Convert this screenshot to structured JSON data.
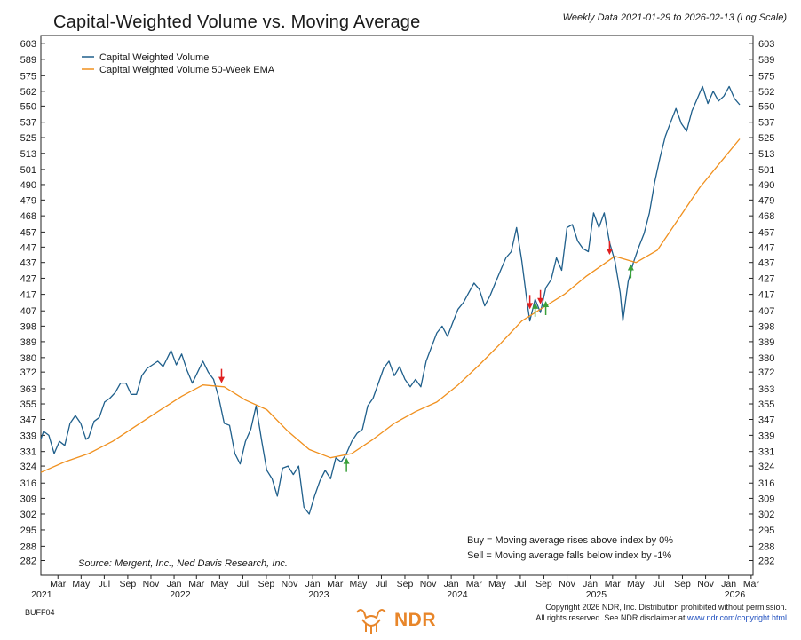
{
  "header": {
    "title": "Capital-Weighted Volume vs. Moving Average",
    "subtitle": "Weekly Data 2021-01-29 to 2026-02-13 (Log Scale)"
  },
  "footer": {
    "code": "BUFF04",
    "logo_text": "NDR",
    "copyright_line1": "Copyright 2026 NDR, Inc. Distribution prohibited without permission.",
    "copyright_line2_prefix": "All rights reserved. See NDR disclaimer at ",
    "copyright_link": "www.ndr.com/copyright.html"
  },
  "colors": {
    "series_volume": "#1f5f8b",
    "series_ema": "#f0901e",
    "buy_arrow": "#3aa03a",
    "sell_arrow": "#e02020",
    "logo": "#e8862a"
  },
  "chart_data": {
    "type": "line",
    "scale": "log",
    "ylim": [
      276,
      610
    ],
    "yticks": [
      603,
      589,
      575,
      562,
      550,
      537,
      525,
      513,
      501,
      490,
      479,
      468,
      457,
      447,
      437,
      427,
      417,
      407,
      398,
      389,
      380,
      372,
      363,
      355,
      347,
      339,
      331,
      324,
      316,
      309,
      302,
      295,
      288,
      282
    ],
    "xlim": [
      "2021-01-29",
      "2026-03-20"
    ],
    "grid": false,
    "legend_position": "top-left",
    "month_ticks": [
      {
        "label": "Mar",
        "date": "2021-03-15"
      },
      {
        "label": "May",
        "date": "2021-05-15"
      },
      {
        "label": "Jul",
        "date": "2021-07-15"
      },
      {
        "label": "Sep",
        "date": "2021-09-15"
      },
      {
        "label": "Nov",
        "date": "2021-11-15"
      },
      {
        "label": "Jan",
        "date": "2022-01-15"
      },
      {
        "label": "Mar",
        "date": "2022-03-15"
      },
      {
        "label": "May",
        "date": "2022-05-15"
      },
      {
        "label": "Jul",
        "date": "2022-07-15"
      },
      {
        "label": "Sep",
        "date": "2022-09-15"
      },
      {
        "label": "Nov",
        "date": "2022-11-15"
      },
      {
        "label": "Jan",
        "date": "2023-01-15"
      },
      {
        "label": "Mar",
        "date": "2023-03-15"
      },
      {
        "label": "May",
        "date": "2023-05-15"
      },
      {
        "label": "Jul",
        "date": "2023-07-15"
      },
      {
        "label": "Sep",
        "date": "2023-09-15"
      },
      {
        "label": "Nov",
        "date": "2023-11-15"
      },
      {
        "label": "Jan",
        "date": "2024-01-15"
      },
      {
        "label": "Mar",
        "date": "2024-03-15"
      },
      {
        "label": "May",
        "date": "2024-05-15"
      },
      {
        "label": "Jul",
        "date": "2024-07-15"
      },
      {
        "label": "Sep",
        "date": "2024-09-15"
      },
      {
        "label": "Nov",
        "date": "2024-11-15"
      },
      {
        "label": "Jan",
        "date": "2025-01-15"
      },
      {
        "label": "Mar",
        "date": "2025-03-15"
      },
      {
        "label": "May",
        "date": "2025-05-15"
      },
      {
        "label": "Jul",
        "date": "2025-07-15"
      },
      {
        "label": "Sep",
        "date": "2025-09-15"
      },
      {
        "label": "Nov",
        "date": "2025-11-15"
      },
      {
        "label": "Jan",
        "date": "2026-01-15"
      },
      {
        "label": "Mar",
        "date": "2026-03-15"
      }
    ],
    "year_labels": [
      {
        "label": "2021",
        "date": "2021-01-31"
      },
      {
        "label": "2022",
        "date": "2022-01-31"
      },
      {
        "label": "2023",
        "date": "2023-01-31"
      },
      {
        "label": "2024",
        "date": "2024-01-31"
      },
      {
        "label": "2025",
        "date": "2025-01-31"
      },
      {
        "label": "2026",
        "date": "2026-01-31"
      }
    ],
    "series": [
      {
        "name": "Capital Weighted Volume",
        "points": [
          [
            "2021-01-29",
            337
          ],
          [
            "2021-02-05",
            341
          ],
          [
            "2021-02-19",
            339
          ],
          [
            "2021-03-05",
            330
          ],
          [
            "2021-03-19",
            336
          ],
          [
            "2021-04-02",
            334
          ],
          [
            "2021-04-16",
            345
          ],
          [
            "2021-04-30",
            349
          ],
          [
            "2021-05-14",
            345
          ],
          [
            "2021-05-28",
            337
          ],
          [
            "2021-06-04",
            338
          ],
          [
            "2021-06-18",
            346
          ],
          [
            "2021-07-02",
            348
          ],
          [
            "2021-07-16",
            356
          ],
          [
            "2021-07-30",
            358
          ],
          [
            "2021-08-13",
            361
          ],
          [
            "2021-08-27",
            366
          ],
          [
            "2021-09-10",
            366
          ],
          [
            "2021-09-24",
            360
          ],
          [
            "2021-10-08",
            360
          ],
          [
            "2021-10-22",
            370
          ],
          [
            "2021-11-05",
            374
          ],
          [
            "2021-11-19",
            376
          ],
          [
            "2021-12-03",
            378
          ],
          [
            "2021-12-17",
            375
          ],
          [
            "2022-01-07",
            384
          ],
          [
            "2022-01-21",
            376
          ],
          [
            "2022-02-04",
            382
          ],
          [
            "2022-02-18",
            373
          ],
          [
            "2022-03-04",
            366
          ],
          [
            "2022-03-18",
            372
          ],
          [
            "2022-04-01",
            378
          ],
          [
            "2022-04-15",
            372
          ],
          [
            "2022-04-29",
            368
          ],
          [
            "2022-05-13",
            358
          ],
          [
            "2022-05-27",
            345
          ],
          [
            "2022-06-10",
            344
          ],
          [
            "2022-06-24",
            330
          ],
          [
            "2022-07-08",
            325
          ],
          [
            "2022-07-22",
            336
          ],
          [
            "2022-08-05",
            342
          ],
          [
            "2022-08-19",
            354
          ],
          [
            "2022-09-02",
            337
          ],
          [
            "2022-09-16",
            322
          ],
          [
            "2022-09-30",
            318
          ],
          [
            "2022-10-14",
            310
          ],
          [
            "2022-10-28",
            323
          ],
          [
            "2022-11-11",
            324
          ],
          [
            "2022-11-25",
            320
          ],
          [
            "2022-12-09",
            324
          ],
          [
            "2022-12-23",
            305
          ],
          [
            "2023-01-06",
            302
          ],
          [
            "2023-01-20",
            310
          ],
          [
            "2023-02-03",
            317
          ],
          [
            "2023-02-17",
            322
          ],
          [
            "2023-03-03",
            318
          ],
          [
            "2023-03-17",
            328
          ],
          [
            "2023-03-31",
            326
          ],
          [
            "2023-04-14",
            330
          ],
          [
            "2023-04-28",
            336
          ],
          [
            "2023-05-12",
            340
          ],
          [
            "2023-05-26",
            342
          ],
          [
            "2023-06-09",
            354
          ],
          [
            "2023-06-23",
            358
          ],
          [
            "2023-07-07",
            366
          ],
          [
            "2023-07-21",
            374
          ],
          [
            "2023-08-04",
            378
          ],
          [
            "2023-08-18",
            370
          ],
          [
            "2023-09-01",
            375
          ],
          [
            "2023-09-15",
            368
          ],
          [
            "2023-09-29",
            364
          ],
          [
            "2023-10-13",
            368
          ],
          [
            "2023-10-27",
            364
          ],
          [
            "2023-11-10",
            378
          ],
          [
            "2023-11-24",
            386
          ],
          [
            "2023-12-08",
            394
          ],
          [
            "2023-12-22",
            398
          ],
          [
            "2024-01-05",
            392
          ],
          [
            "2024-01-19",
            400
          ],
          [
            "2024-02-02",
            408
          ],
          [
            "2024-02-16",
            412
          ],
          [
            "2024-03-01",
            418
          ],
          [
            "2024-03-15",
            424
          ],
          [
            "2024-03-29",
            420
          ],
          [
            "2024-04-12",
            410
          ],
          [
            "2024-04-26",
            416
          ],
          [
            "2024-05-10",
            424
          ],
          [
            "2024-05-24",
            432
          ],
          [
            "2024-06-07",
            440
          ],
          [
            "2024-06-21",
            444
          ],
          [
            "2024-07-05",
            460
          ],
          [
            "2024-07-19",
            438
          ],
          [
            "2024-08-02",
            412
          ],
          [
            "2024-08-09",
            401
          ],
          [
            "2024-08-23",
            414
          ],
          [
            "2024-09-06",
            406
          ],
          [
            "2024-09-20",
            421
          ],
          [
            "2024-10-04",
            426
          ],
          [
            "2024-10-18",
            440
          ],
          [
            "2024-11-01",
            432
          ],
          [
            "2024-11-15",
            460
          ],
          [
            "2024-11-29",
            462
          ],
          [
            "2024-12-13",
            451
          ],
          [
            "2024-12-27",
            446
          ],
          [
            "2025-01-10",
            444
          ],
          [
            "2025-01-24",
            470
          ],
          [
            "2025-02-07",
            460
          ],
          [
            "2025-02-21",
            470
          ],
          [
            "2025-03-07",
            450
          ],
          [
            "2025-03-21",
            438
          ],
          [
            "2025-04-04",
            418
          ],
          [
            "2025-04-11",
            401
          ],
          [
            "2025-04-25",
            425
          ],
          [
            "2025-05-09",
            437
          ],
          [
            "2025-05-23",
            447
          ],
          [
            "2025-06-06",
            456
          ],
          [
            "2025-06-20",
            470
          ],
          [
            "2025-07-04",
            492
          ],
          [
            "2025-07-18",
            510
          ],
          [
            "2025-08-01",
            526
          ],
          [
            "2025-08-15",
            537
          ],
          [
            "2025-08-29",
            548
          ],
          [
            "2025-09-12",
            536
          ],
          [
            "2025-09-26",
            530
          ],
          [
            "2025-10-10",
            546
          ],
          [
            "2025-10-24",
            556
          ],
          [
            "2025-11-07",
            566
          ],
          [
            "2025-11-21",
            552
          ],
          [
            "2025-12-05",
            562
          ],
          [
            "2025-12-19",
            554
          ],
          [
            "2026-01-02",
            558
          ],
          [
            "2026-01-16",
            566
          ],
          [
            "2026-01-30",
            556
          ],
          [
            "2026-02-13",
            551
          ]
        ]
      },
      {
        "name": "Capital Weighted Volume 50-Week EMA",
        "points": [
          [
            "2021-01-29",
            321
          ],
          [
            "2021-04-02",
            326
          ],
          [
            "2021-06-04",
            330
          ],
          [
            "2021-08-06",
            336
          ],
          [
            "2021-10-01",
            343
          ],
          [
            "2021-12-03",
            351
          ],
          [
            "2022-02-04",
            359
          ],
          [
            "2022-04-01",
            365
          ],
          [
            "2022-05-27",
            364
          ],
          [
            "2022-07-22",
            357
          ],
          [
            "2022-09-16",
            352
          ],
          [
            "2022-11-11",
            341
          ],
          [
            "2023-01-06",
            332
          ],
          [
            "2023-03-03",
            328
          ],
          [
            "2023-04-28",
            330
          ],
          [
            "2023-06-23",
            337
          ],
          [
            "2023-08-18",
            345
          ],
          [
            "2023-10-13",
            351
          ],
          [
            "2023-12-08",
            356
          ],
          [
            "2024-02-02",
            365
          ],
          [
            "2024-03-29",
            376
          ],
          [
            "2024-05-24",
            388
          ],
          [
            "2024-07-19",
            401
          ],
          [
            "2024-09-13",
            409
          ],
          [
            "2024-11-08",
            417
          ],
          [
            "2025-01-03",
            428
          ],
          [
            "2025-03-21",
            441
          ],
          [
            "2025-05-16",
            437
          ],
          [
            "2025-07-11",
            445
          ],
          [
            "2025-09-05",
            466
          ],
          [
            "2025-10-31",
            488
          ],
          [
            "2025-12-26",
            507
          ],
          [
            "2026-02-13",
            524
          ]
        ]
      }
    ],
    "signals": [
      {
        "type": "sell",
        "date": "2022-05-20",
        "value": 366
      },
      {
        "type": "buy",
        "date": "2023-04-14",
        "value": 328
      },
      {
        "type": "sell",
        "date": "2024-08-09",
        "value": 408
      },
      {
        "type": "buy",
        "date": "2024-08-23",
        "value": 412
      },
      {
        "type": "sell",
        "date": "2024-09-06",
        "value": 411
      },
      {
        "type": "buy",
        "date": "2024-09-20",
        "value": 413
      },
      {
        "type": "sell",
        "date": "2025-03-07",
        "value": 442
      },
      {
        "type": "buy",
        "date": "2025-05-02",
        "value": 436
      }
    ],
    "annotations": {
      "source": "Source:   Mergent, Inc., Ned Davis Research, Inc.",
      "buy_rule": "Buy = Moving average rises above index by 0%",
      "sell_rule": "Sell = Moving average falls below index by -1%"
    }
  }
}
